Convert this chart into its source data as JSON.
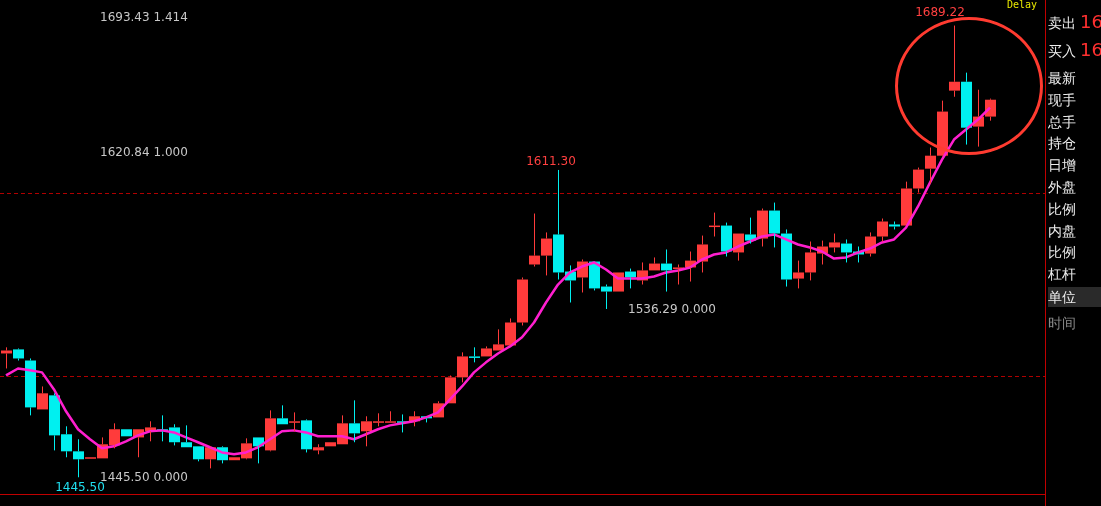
{
  "chart_data": {
    "type": "candlestick",
    "categories": [
      null,
      null,
      null,
      null,
      null,
      null,
      null,
      null,
      null,
      null,
      null,
      null,
      null,
      null,
      null,
      null,
      null,
      null,
      null,
      null,
      null,
      null,
      null,
      null,
      null,
      null,
      null,
      null,
      null,
      null,
      null,
      null,
      null,
      null,
      null,
      null,
      null,
      null,
      null,
      null,
      null,
      null,
      null,
      null,
      null,
      null,
      null,
      null,
      null,
      null,
      null,
      null,
      null,
      null,
      null,
      null,
      null,
      null,
      null,
      null,
      null,
      null,
      null,
      null,
      null,
      null,
      null,
      null,
      null,
      null,
      null,
      null,
      null,
      null,
      null,
      null,
      null,
      null,
      null,
      null,
      null,
      null,
      null
    ],
    "ohlc": [
      [
        1512.3,
        1515.6,
        1504.2,
        1513.9
      ],
      [
        1514.5,
        1515.0,
        1508.5,
        1509.6
      ],
      [
        1508.5,
        1509.6,
        1478.9,
        1483.2
      ],
      [
        1482.1,
        1494.5,
        1482.1,
        1490.8
      ],
      [
        1489.7,
        1490.8,
        1460.0,
        1468.1
      ],
      [
        1468.7,
        1473.0,
        1456.3,
        1459.5
      ],
      [
        1459.5,
        1466.0,
        1445.5,
        1455.2
      ],
      [
        1455.7,
        1456.3,
        1455.7,
        1456.3
      ],
      [
        1455.7,
        1467.0,
        1455.7,
        1463.3
      ],
      [
        1462.7,
        1474.6,
        1461.1,
        1471.4
      ],
      [
        1471.4,
        1471.4,
        1467.6,
        1467.6
      ],
      [
        1467.0,
        1471.4,
        1456.3,
        1471.4
      ],
      [
        1470.3,
        1475.7,
        1464.9,
        1472.4
      ],
      [
        1471.4,
        1478.9,
        1464.9,
        1470.3
      ],
      [
        1472.4,
        1474.1,
        1462.7,
        1464.4
      ],
      [
        1464.4,
        1473.5,
        1461.7,
        1461.7
      ],
      [
        1462.2,
        1462.2,
        1454.1,
        1455.2
      ],
      [
        1455.2,
        1462.2,
        1450.3,
        1461.7
      ],
      [
        1461.7,
        1462.2,
        1453.0,
        1454.7
      ],
      [
        1454.7,
        1456.3,
        1454.7,
        1456.3
      ],
      [
        1455.7,
        1466.5,
        1455.2,
        1463.8
      ],
      [
        1467.0,
        1467.0,
        1453.0,
        1462.2
      ],
      [
        1460.0,
        1481.6,
        1459.5,
        1477.3
      ],
      [
        1477.3,
        1484.3,
        1474.1,
        1474.1
      ],
      [
        1475.1,
        1480.5,
        1470.3,
        1475.7
      ],
      [
        1476.2,
        1476.7,
        1458.9,
        1460.6
      ],
      [
        1460.0,
        1463.3,
        1457.9,
        1461.7
      ],
      [
        1462.2,
        1464.4,
        1462.2,
        1464.4
      ],
      [
        1463.3,
        1478.9,
        1463.3,
        1474.6
      ],
      [
        1474.6,
        1487.0,
        1464.4,
        1469.2
      ],
      [
        1470.3,
        1478.4,
        1462.2,
        1475.7
      ],
      [
        1475.1,
        1480.0,
        1473.0,
        1475.7
      ],
      [
        1475.1,
        1481.1,
        1475.1,
        1475.7
      ],
      [
        1475.7,
        1479.4,
        1469.7,
        1475.1
      ],
      [
        1475.7,
        1481.1,
        1473.0,
        1478.4
      ],
      [
        1478.4,
        1478.4,
        1475.1,
        1477.3
      ],
      [
        1477.8,
        1486.5,
        1477.8,
        1485.4
      ],
      [
        1485.4,
        1500.4,
        1485.4,
        1499.4
      ],
      [
        1499.4,
        1512.9,
        1496.7,
        1510.7
      ],
      [
        1510.7,
        1515.6,
        1507.5,
        1510.2
      ],
      [
        1510.7,
        1516.1,
        1510.7,
        1515.0
      ],
      [
        1513.9,
        1525.3,
        1513.9,
        1517.2
      ],
      [
        1516.6,
        1531.2,
        1516.6,
        1529.0
      ],
      [
        1529.0,
        1553.3,
        1527.4,
        1552.2
      ],
      [
        1560.3,
        1587.8,
        1559.2,
        1565.1
      ],
      [
        1565.1,
        1577.6,
        1554.4,
        1574.3
      ],
      [
        1576.5,
        1611.3,
        1552.2,
        1556.0
      ],
      [
        1556.5,
        1559.8,
        1539.8,
        1551.7
      ],
      [
        1553.3,
        1563.0,
        1545.2,
        1561.9
      ],
      [
        1561.9,
        1561.9,
        1546.3,
        1547.4
      ],
      [
        1548.4,
        1549.5,
        1536.29,
        1545.7
      ],
      [
        1545.7,
        1556.0,
        1545.7,
        1556.0
      ],
      [
        1556.5,
        1558.1,
        1547.4,
        1553.3
      ],
      [
        1551.7,
        1561.4,
        1549.5,
        1557.1
      ],
      [
        1557.1,
        1564.1,
        1557.1,
        1560.8
      ],
      [
        1560.8,
        1568.4,
        1545.7,
        1557.1
      ],
      [
        1558.1,
        1560.3,
        1549.5,
        1558.7
      ],
      [
        1558.7,
        1567.3,
        1551.1,
        1562.4
      ],
      [
        1561.9,
        1575.9,
        1556.0,
        1571.1
      ],
      [
        1580.8,
        1588.3,
        1575.4,
        1581.3
      ],
      [
        1581.3,
        1582.9,
        1564.6,
        1567.3
      ],
      [
        1566.8,
        1577.0,
        1562.4,
        1577.0
      ],
      [
        1576.5,
        1585.6,
        1571.6,
        1573.2
      ],
      [
        1574.3,
        1590.5,
        1570.0,
        1589.4
      ],
      [
        1589.4,
        1593.7,
        1569.5,
        1577.0
      ],
      [
        1577.0,
        1579.2,
        1548.4,
        1552.2
      ],
      [
        1552.7,
        1562.4,
        1547.4,
        1556.0
      ],
      [
        1556.0,
        1572.7,
        1551.7,
        1566.8
      ],
      [
        1566.2,
        1573.2,
        1560.3,
        1570.0
      ],
      [
        1569.5,
        1577.0,
        1566.8,
        1572.2
      ],
      [
        1571.6,
        1573.8,
        1561.4,
        1566.8
      ],
      [
        1567.3,
        1570.0,
        1561.4,
        1565.7
      ],
      [
        1566.2,
        1577.6,
        1564.6,
        1575.4
      ],
      [
        1575.4,
        1585.1,
        1572.7,
        1583.5
      ],
      [
        1581.9,
        1583.5,
        1579.2,
        1580.8
      ],
      [
        1581.3,
        1605.0,
        1581.3,
        1601.3
      ],
      [
        1601.3,
        1612.6,
        1599.1,
        1611.5
      ],
      [
        1612.0,
        1623.4,
        1603.9,
        1619.0
      ],
      [
        1619.0,
        1648.7,
        1618.5,
        1642.8
      ],
      [
        1654.1,
        1689.22,
        1650.8,
        1658.9
      ],
      [
        1658.9,
        1663.8,
        1625.0,
        1634.1
      ],
      [
        1634.7,
        1654.6,
        1623.9,
        1640.1
      ],
      [
        1640.1,
        1649.8,
        1637.9,
        1649.2
      ]
    ],
    "series": [
      {
        "type": "line",
        "color": "#ff1fcf",
        "values": [
          1500.5,
          1504.2,
          1503.2,
          1502.1,
          1492.9,
          1481.1,
          1471.4,
          1466.0,
          1461.1,
          1462.2,
          1464.9,
          1468.1,
          1470.3,
          1470.8,
          1469.7,
          1467.0,
          1464.4,
          1461.7,
          1458.9,
          1457.9,
          1458.9,
          1461.7,
          1466.0,
          1470.3,
          1470.8,
          1469.7,
          1467.6,
          1467.6,
          1467.6,
          1466.0,
          1468.7,
          1471.4,
          1473.5,
          1474.6,
          1475.7,
          1477.8,
          1480.5,
          1487.5,
          1494.5,
          1502.1,
          1507.5,
          1512.3,
          1516.1,
          1521.0,
          1529.0,
          1539.8,
          1549.5,
          1556.0,
          1559.2,
          1561.4,
          1557.6,
          1552.7,
          1552.7,
          1552.7,
          1553.8,
          1556.0,
          1557.1,
          1558.7,
          1563.0,
          1565.7,
          1566.8,
          1570.0,
          1572.7,
          1575.4,
          1576.5,
          1573.8,
          1571.1,
          1569.5,
          1567.3,
          1563.5,
          1564.1,
          1566.8,
          1568.9,
          1572.2,
          1573.8,
          1580.2,
          1591.6,
          1604.5,
          1616.9,
          1627.7,
          1633.1,
          1638.5,
          1644.9
        ]
      }
    ],
    "ylim": [
      1430,
      1703
    ],
    "tick_labels": false,
    "ref_lines": [
      {
        "axis": "y",
        "value": 1599.1,
        "color": "#b00000",
        "line_style": "dashed"
      },
      {
        "axis": "y",
        "value": 1499.9,
        "color": "#b00000",
        "line_style": "dashed"
      },
      {
        "axis": "y",
        "value": 1436.3,
        "color": "#c00000",
        "line_style": "solid"
      }
    ],
    "annotations": [
      "1693.43 1.414",
      "1620.84 1.000",
      "1536.29 0.000",
      "1445.50 0.000",
      "1611.30",
      "1689.22",
      "1445.50",
      "Delay",
      "卖出 16",
      "买入 16",
      "最新",
      "现手",
      "总手",
      "持仓",
      "日增",
      "外盘",
      "比例",
      "内盘",
      "比例",
      "杠杆",
      "单位",
      "时间"
    ]
  }
}
